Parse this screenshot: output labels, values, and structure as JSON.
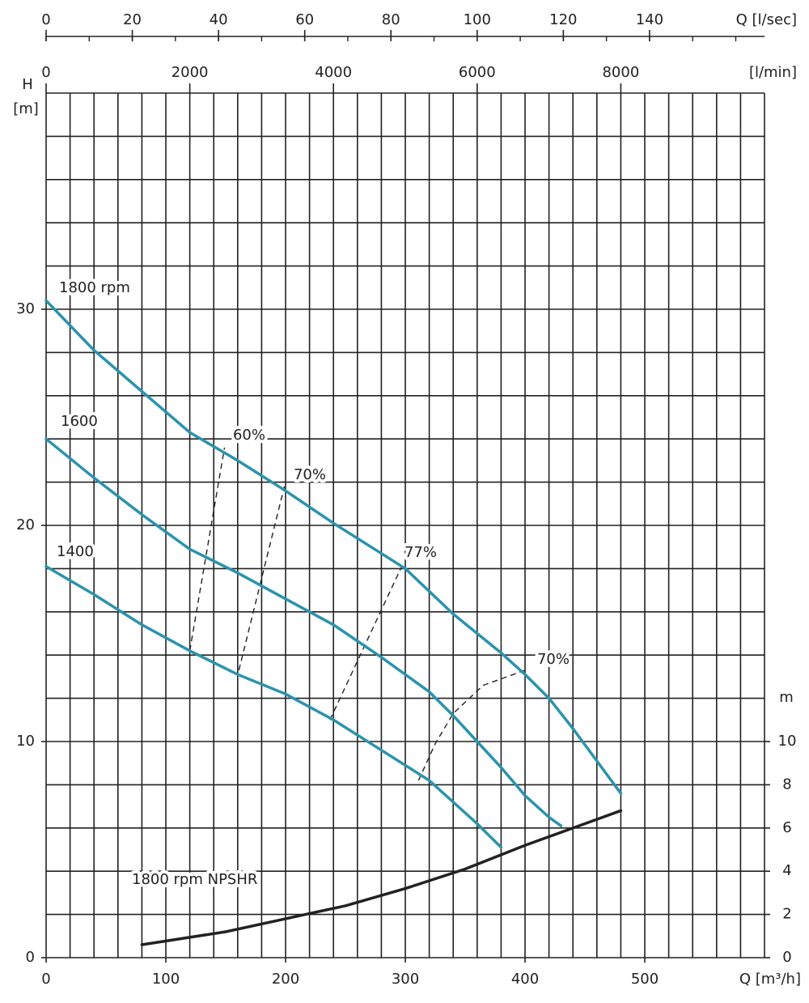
{
  "chart_data": {
    "type": "line",
    "x_label": "Q [m³/h]",
    "y_label": "H",
    "y_unit": "[m]",
    "y2_label": "m",
    "xlim": [
      0,
      600
    ],
    "xticks": [
      0,
      100,
      200,
      300,
      400,
      500
    ],
    "ylim": [
      0,
      40
    ],
    "yticks": [
      0,
      10,
      20,
      30
    ],
    "y2lim": [
      0,
      40
    ],
    "y2ticks": [
      0,
      2,
      4,
      6,
      8,
      10
    ],
    "grid": {
      "x_step": 20,
      "y_step": 2
    },
    "top_axes": [
      {
        "label": "Q [l/sec]",
        "lim": [
          0,
          166.67
        ],
        "ticks": [
          0,
          20,
          40,
          60,
          80,
          100,
          120,
          140
        ],
        "minor_step": 10
      },
      {
        "label": "[l/min]",
        "lim": [
          0,
          10000
        ],
        "ticks": [
          0,
          2000,
          4000,
          6000,
          8000
        ]
      }
    ],
    "series": [
      {
        "name": "1800 rpm",
        "color": "#2b93ad",
        "x": [
          0,
          40,
          80,
          120,
          160,
          200,
          240,
          280,
          300,
          340,
          380,
          400,
          420,
          440,
          460,
          480
        ],
        "values": [
          30.4,
          28.1,
          26.2,
          24.3,
          23,
          21.6,
          20.1,
          18.7,
          18,
          15.9,
          14.1,
          13.1,
          12,
          10.6,
          9.1,
          7.6
        ]
      },
      {
        "name": "1600",
        "color": "#2b93ad",
        "x": [
          0,
          40,
          80,
          120,
          160,
          200,
          240,
          280,
          320,
          340,
          360,
          380,
          400,
          420,
          430
        ],
        "values": [
          24,
          22.2,
          20.5,
          18.9,
          17.8,
          16.6,
          15.4,
          13.9,
          12.3,
          11.2,
          10,
          8.8,
          7.5,
          6.5,
          6.1
        ]
      },
      {
        "name": "1400",
        "color": "#2b93ad",
        "x": [
          0,
          40,
          80,
          120,
          160,
          200,
          240,
          280,
          320,
          360,
          380
        ],
        "values": [
          18.1,
          16.8,
          15.4,
          14.2,
          13.1,
          12.2,
          11,
          9.6,
          8.2,
          6.2,
          5.1
        ]
      },
      {
        "name": "1800 rpm NPSHR",
        "color": "#222222",
        "axis": "y2",
        "x": [
          80,
          150,
          200,
          250,
          300,
          350,
          400,
          450,
          480
        ],
        "values": [
          0.6,
          1.2,
          1.8,
          2.4,
          3.2,
          4.1,
          5.2,
          6.2,
          6.8
        ]
      }
    ],
    "efficiency_lines": [
      {
        "label": "60%",
        "x": [
          120,
          149
        ],
        "values": [
          14.2,
          23.6
        ]
      },
      {
        "label": "70%",
        "x": [
          161,
          199
        ],
        "values": [
          13.3,
          21.8
        ]
      },
      {
        "label": "77%",
        "x": [
          237,
          297
        ],
        "values": [
          11,
          18.1
        ]
      },
      {
        "label": "70%",
        "x": [
          311,
          325,
          340,
          365,
          400
        ],
        "values": [
          8.2,
          9.9,
          11.3,
          12.6,
          13.3
        ]
      }
    ]
  }
}
